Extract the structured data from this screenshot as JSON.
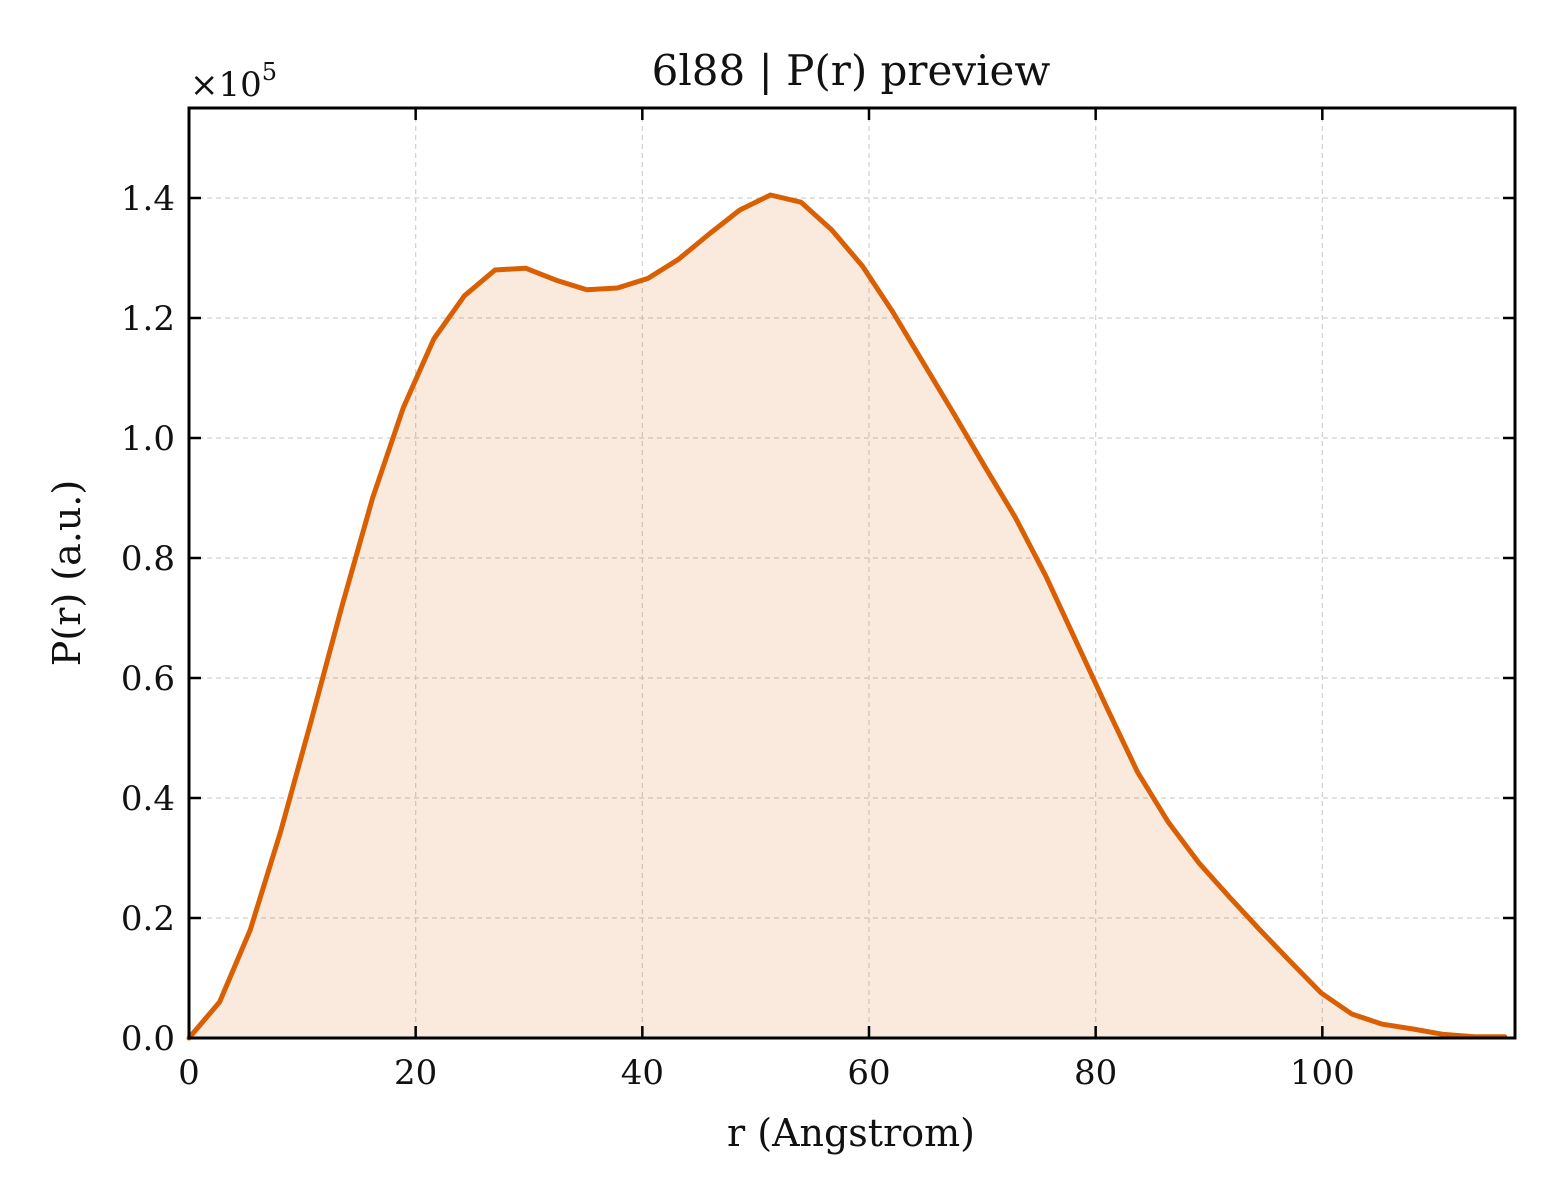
{
  "chart_data": {
    "type": "area",
    "title": "6l88 | P(r) preview",
    "xlabel": "r (Angstrom)",
    "ylabel": "P(r) (a.u.)",
    "y_scale_label": "×10",
    "y_scale_exponent": "5",
    "xlim": [
      0,
      117
    ],
    "ylim": [
      0,
      1.55
    ],
    "x_ticks": [
      0,
      20,
      40,
      60,
      80,
      100
    ],
    "x_tick_labels": [
      "0",
      "20",
      "40",
      "60",
      "80",
      "100"
    ],
    "y_ticks": [
      0.0,
      0.2,
      0.4,
      0.6,
      0.8,
      1.0,
      1.2,
      1.4
    ],
    "y_tick_labels": [
      "0.0",
      "0.2",
      "0.4",
      "0.6",
      "0.8",
      "1.0",
      "1.2",
      "1.4"
    ],
    "grid": true,
    "colors": {
      "line": "#d95f02",
      "fill": "#d95f02",
      "grid": "#d0d0d0",
      "frame": "#000000"
    },
    "series": [
      {
        "x": [
          0,
          2.7,
          5.4,
          8.1,
          10.8,
          13.5,
          16.2,
          18.9,
          21.6,
          24.3,
          27.0,
          29.7,
          32.4,
          35.1,
          37.8,
          40.5,
          43.2,
          45.9,
          48.6,
          51.3,
          54.0,
          56.7,
          59.4,
          62.1,
          64.8,
          67.5,
          70.2,
          72.9,
          75.6,
          78.3,
          81.0,
          83.7,
          86.4,
          89.1,
          91.8,
          94.5,
          97.2,
          99.9,
          102.6,
          105.3,
          108.0,
          110.7,
          113.4,
          116.1
        ],
        "y": [
          0.0,
          0.06,
          0.18,
          0.345,
          0.53,
          0.72,
          0.9,
          1.05,
          1.165,
          1.237,
          1.28,
          1.283,
          1.263,
          1.247,
          1.25,
          1.266,
          1.298,
          1.34,
          1.38,
          1.405,
          1.393,
          1.347,
          1.287,
          1.21,
          1.125,
          1.04,
          0.953,
          0.868,
          0.77,
          0.66,
          0.55,
          0.443,
          0.36,
          0.292,
          0.235,
          0.18,
          0.127,
          0.075,
          0.04,
          0.023,
          0.015,
          0.006,
          0.002,
          0.002
        ]
      }
    ]
  }
}
